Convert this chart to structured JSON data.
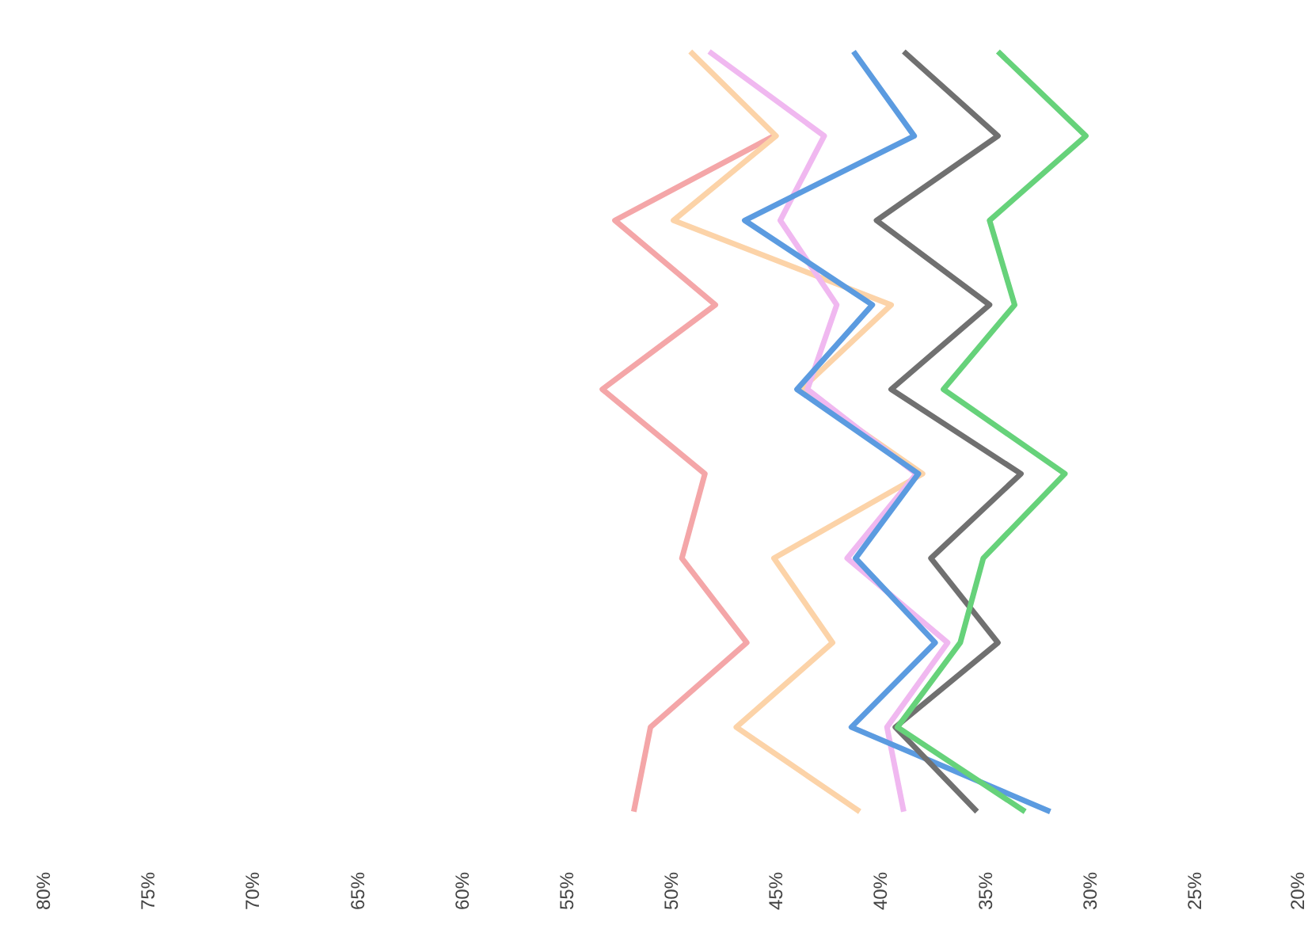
{
  "chart_data": {
    "type": "line",
    "orientation": "horizontal",
    "categories": [
      null,
      null,
      null,
      null,
      null,
      null,
      null,
      null,
      null,
      null
    ],
    "xlim": [
      80,
      20
    ],
    "xticks": [
      {
        "value": 80,
        "label": "80%"
      },
      {
        "value": 75,
        "label": "75%"
      },
      {
        "value": 70,
        "label": "70%"
      },
      {
        "value": 65,
        "label": "65%"
      },
      {
        "value": 60,
        "label": "60%"
      },
      {
        "value": 55,
        "label": "55%"
      },
      {
        "value": 50,
        "label": "50%"
      },
      {
        "value": 45,
        "label": "45%"
      },
      {
        "value": 40,
        "label": "40%"
      },
      {
        "value": 35,
        "label": "35%"
      },
      {
        "value": 30,
        "label": "30%"
      },
      {
        "value": 25,
        "label": "25%"
      },
      {
        "value": 20,
        "label": "20%"
      }
    ],
    "series": [
      {
        "color": "#f4a6a8",
        "values": [
          null,
          45.1,
          52.7,
          47.9,
          53.3,
          48.4,
          49.5,
          46.4,
          51.0,
          51.8
        ]
      },
      {
        "color": "#fcd3a8",
        "values": [
          49.1,
          45.0,
          49.9,
          39.5,
          43.8,
          38.0,
          45.1,
          42.3,
          46.9,
          41.0
        ]
      },
      {
        "color": "#f0b8f0",
        "values": [
          48.2,
          42.7,
          44.8,
          42.1,
          43.5,
          38.3,
          41.6,
          36.8,
          39.7,
          38.9
        ]
      },
      {
        "color": "#5b9be0",
        "values": [
          41.3,
          38.4,
          46.5,
          40.4,
          44.0,
          38.2,
          41.2,
          37.4,
          41.4,
          31.9
        ]
      },
      {
        "color": "#707070",
        "values": [
          38.9,
          34.4,
          40.2,
          34.8,
          39.5,
          33.3,
          37.6,
          34.4,
          39.3,
          35.4
        ]
      },
      {
        "color": "#66d27a",
        "values": [
          34.4,
          30.2,
          34.8,
          33.6,
          37.0,
          31.2,
          35.1,
          36.2,
          39.2,
          33.1
        ]
      }
    ],
    "tick_labels": "x",
    "line_style": "solid"
  }
}
